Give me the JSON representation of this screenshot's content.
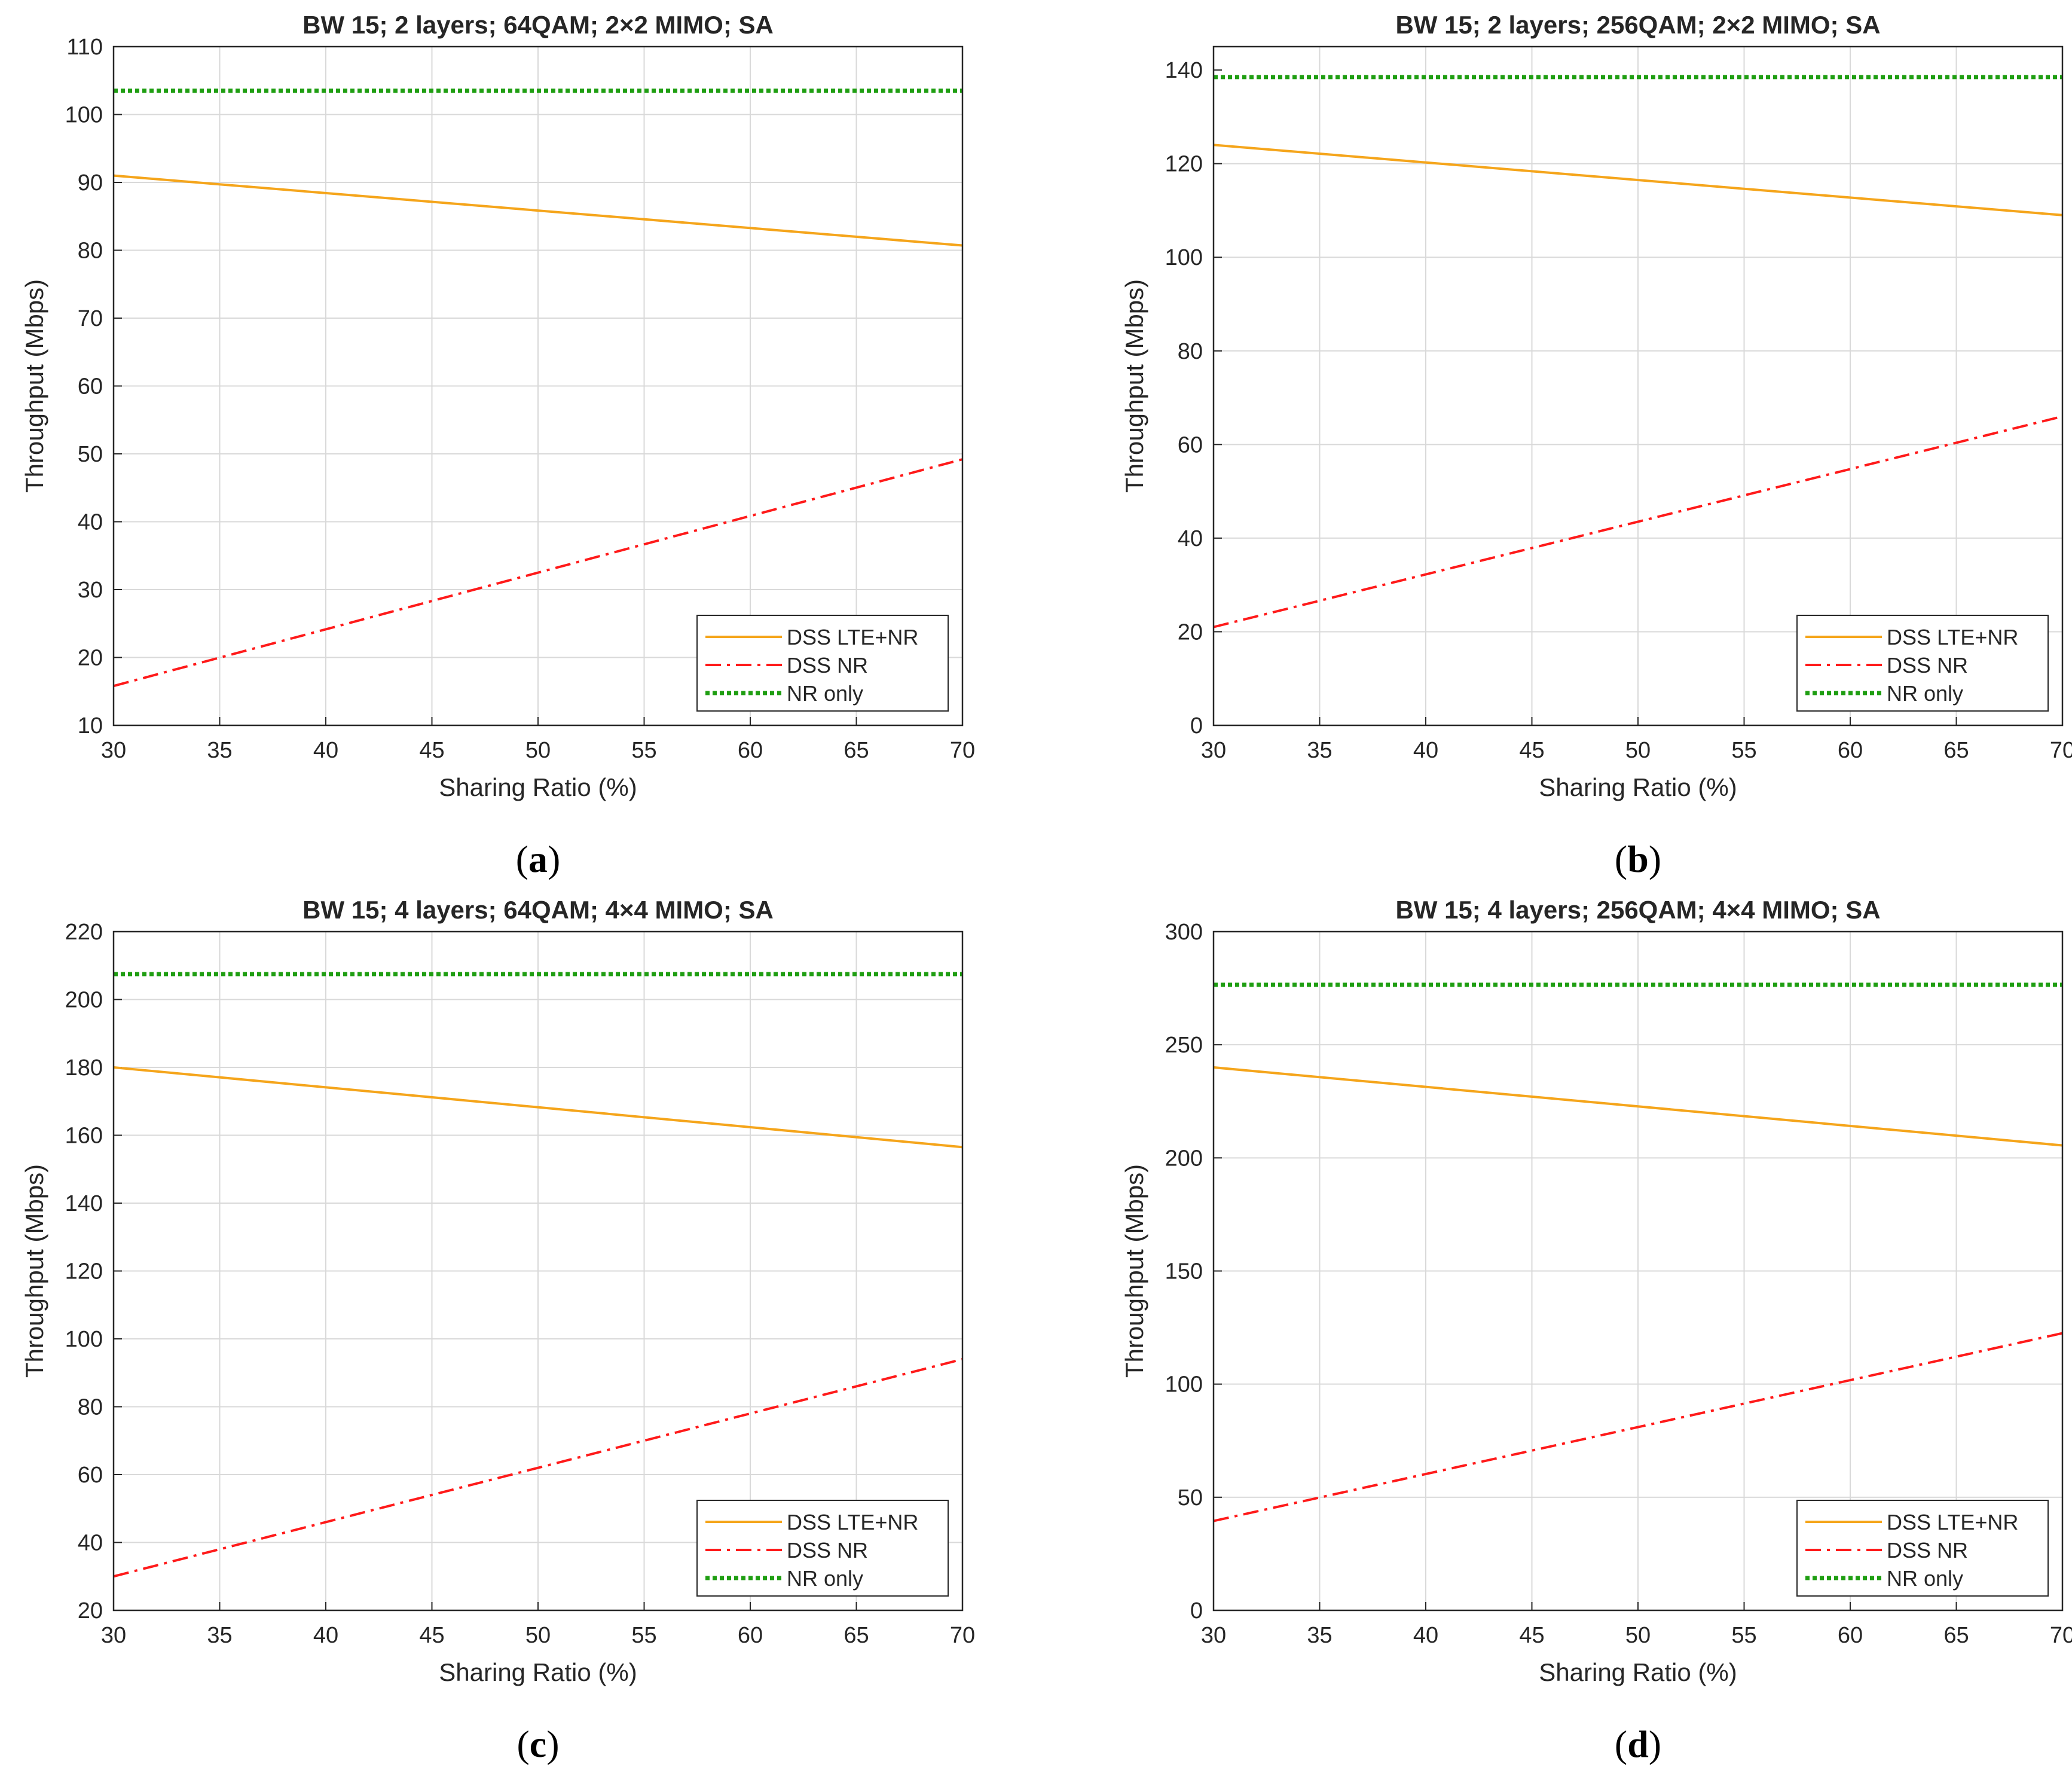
{
  "figure_colors": {
    "axes": "#262626",
    "grid": "#d9d9d9"
  },
  "chart_data": [
    {
      "type": "line",
      "caption": "a",
      "title": "BW 15; 2 layers; 64QAM; 2×2 MIMO; SA",
      "xlabel": "Sharing Ratio (%)",
      "ylabel": "Throughput (Mbps)",
      "xlim": [
        30,
        70
      ],
      "ylim": [
        10,
        110
      ],
      "xticks": [
        30,
        35,
        40,
        45,
        50,
        55,
        60,
        65,
        70
      ],
      "yticks": [
        10,
        20,
        30,
        40,
        50,
        60,
        70,
        80,
        90,
        100,
        110
      ],
      "grid": true,
      "legend_position": "bottom-right",
      "series": [
        {
          "name": "DSS LTE+NR",
          "color": "#f5a51b",
          "style": "solid",
          "x": [
            30,
            70
          ],
          "y": [
            91.0,
            80.7
          ]
        },
        {
          "name": "DSS NR",
          "color": "#ff1a1a",
          "style": "dashdot",
          "x": [
            30,
            70
          ],
          "y": [
            15.8,
            49.2
          ]
        },
        {
          "name": "NR only",
          "color": "#1f9e12",
          "style": "dotted",
          "x": [
            30,
            70
          ],
          "y": [
            103.5,
            103.5
          ]
        }
      ]
    },
    {
      "type": "line",
      "caption": "b",
      "title": "BW 15; 2 layers; 256QAM; 2×2 MIMO; SA",
      "xlabel": "Sharing Ratio (%)",
      "ylabel": "Throughput (Mbps)",
      "xlim": [
        30,
        70
      ],
      "ylim": [
        0,
        145
      ],
      "xticks": [
        30,
        35,
        40,
        45,
        50,
        55,
        60,
        65,
        70
      ],
      "yticks": [
        0,
        20,
        40,
        60,
        80,
        100,
        120,
        140
      ],
      "grid": true,
      "legend_position": "bottom-right",
      "series": [
        {
          "name": "DSS LTE+NR",
          "color": "#f5a51b",
          "style": "solid",
          "x": [
            30,
            70
          ],
          "y": [
            124.0,
            109.0
          ]
        },
        {
          "name": "DSS NR",
          "color": "#ff1a1a",
          "style": "dashdot",
          "x": [
            30,
            70
          ],
          "y": [
            21.0,
            66.0
          ]
        },
        {
          "name": "NR only",
          "color": "#1f9e12",
          "style": "dotted",
          "x": [
            30,
            70
          ],
          "y": [
            138.5,
            138.5
          ]
        }
      ]
    },
    {
      "type": "line",
      "caption": "c",
      "title": "BW 15; 4 layers; 64QAM; 4×4 MIMO; SA",
      "xlabel": "Sharing Ratio (%)",
      "ylabel": "Throughput (Mbps)",
      "xlim": [
        30,
        70
      ],
      "ylim": [
        20,
        220
      ],
      "xticks": [
        30,
        35,
        40,
        45,
        50,
        55,
        60,
        65,
        70
      ],
      "yticks": [
        20,
        40,
        60,
        80,
        100,
        120,
        140,
        160,
        180,
        200,
        220
      ],
      "grid": true,
      "legend_position": "bottom-right",
      "series": [
        {
          "name": "DSS LTE+NR",
          "color": "#f5a51b",
          "style": "solid",
          "x": [
            30,
            70
          ],
          "y": [
            180.0,
            156.5
          ]
        },
        {
          "name": "DSS NR",
          "color": "#ff1a1a",
          "style": "dashdot",
          "x": [
            30,
            70
          ],
          "y": [
            30.0,
            94.0
          ]
        },
        {
          "name": "NR only",
          "color": "#1f9e12",
          "style": "dotted",
          "x": [
            30,
            70
          ],
          "y": [
            207.5,
            207.5
          ]
        }
      ]
    },
    {
      "type": "line",
      "caption": "d",
      "title": "BW 15; 4 layers; 256QAM; 4×4 MIMO; SA",
      "xlabel": "Sharing Ratio (%)",
      "ylabel": "Throughput (Mbps)",
      "xlim": [
        30,
        70
      ],
      "ylim": [
        0,
        300
      ],
      "xticks": [
        30,
        35,
        40,
        45,
        50,
        55,
        60,
        65,
        70
      ],
      "yticks": [
        0,
        50,
        100,
        150,
        200,
        250,
        300
      ],
      "grid": true,
      "legend_position": "bottom-right",
      "series": [
        {
          "name": "DSS LTE+NR",
          "color": "#f5a51b",
          "style": "solid",
          "x": [
            30,
            70
          ],
          "y": [
            240.0,
            205.5
          ]
        },
        {
          "name": "DSS NR",
          "color": "#ff1a1a",
          "style": "dashdot",
          "x": [
            30,
            70
          ],
          "y": [
            39.5,
            122.5
          ]
        },
        {
          "name": "NR only",
          "color": "#1f9e12",
          "style": "dotted",
          "x": [
            30,
            70
          ],
          "y": [
            276.5,
            276.5
          ]
        }
      ]
    }
  ]
}
